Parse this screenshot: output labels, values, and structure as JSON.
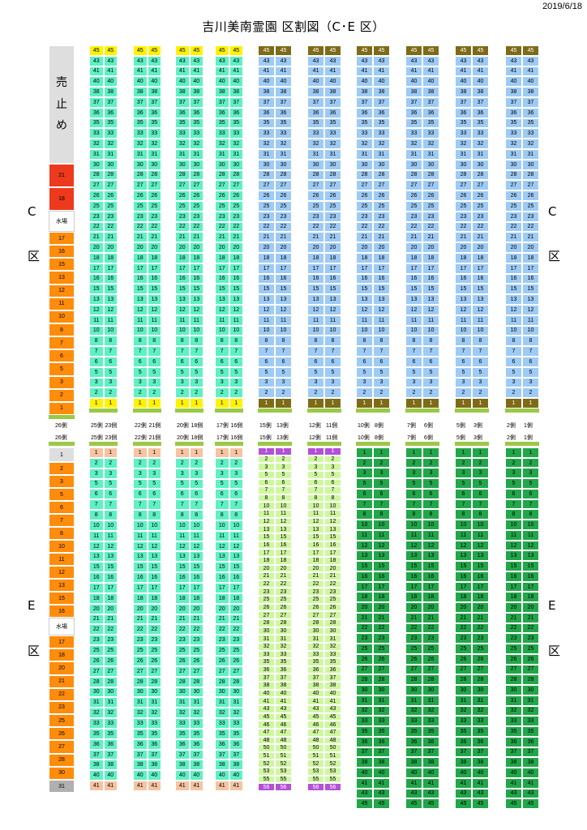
{
  "title": "吉川美南霊園 区割図（C･E 区）",
  "date": "2019/6/18",
  "sections": {
    "c": [
      "C",
      "区"
    ],
    "e": [
      "E",
      "区"
    ]
  },
  "colors": {
    "cyan": "#5ef1c3",
    "blue": "#9ecbf5",
    "yellow": "#fff200",
    "olive": "#7e6b17",
    "peach": "#f7c3a2",
    "purple": "#b44fd8",
    "lightgreen": "#cff7a0",
    "green": "#22a64a",
    "orange": "#ff8c0a",
    "red": "#ee3a1c",
    "gray": "#dedede",
    "sidegreen": "#9ac945"
  },
  "c_side": {
    "top": "売\n止\nめ",
    "red": [
      "21",
      "18"
    ],
    "water": "水場",
    "orange": [
      "17",
      "16",
      "15",
      "13",
      "12",
      "11",
      "10",
      "8",
      "7",
      "6",
      "5",
      "3",
      "2",
      "1"
    ]
  },
  "e_side": {
    "top": "1",
    "orange": [
      "2",
      "3",
      "5",
      "6",
      "7",
      "8",
      "10",
      "11",
      "12",
      "13",
      "15",
      "16"
    ],
    "water": "水場",
    "orange2": [
      "17",
      "18",
      "20",
      "21",
      "22",
      "23",
      "25",
      "26",
      "27",
      "28",
      "30"
    ],
    "bottom": "31"
  },
  "c_rows": [
    "45",
    "43",
    "41",
    "40",
    "38",
    "37",
    "36",
    "35",
    "33",
    "32",
    "31",
    "30",
    "28",
    "27",
    "26",
    "25",
    "23",
    "22",
    "21",
    "20",
    "18",
    "17",
    "16",
    "15",
    "13",
    "12",
    "11",
    "10",
    "8",
    "7",
    "6",
    "5",
    "3",
    "2",
    "1"
  ],
  "e_rows_std": [
    "1",
    "2",
    "3",
    "5",
    "6",
    "7",
    "8",
    "10",
    "11",
    "12",
    "13",
    "15",
    "16",
    "17",
    "18",
    "20",
    "21",
    "22",
    "23",
    "25",
    "26",
    "27",
    "28",
    "30",
    "31",
    "32",
    "33",
    "35",
    "36",
    "37",
    "38",
    "40",
    "41"
  ],
  "e_rows_p": [
    "1",
    "2",
    "3",
    "5",
    "6",
    "7",
    "8",
    "10",
    "11",
    "12",
    "13",
    "15",
    "16",
    "17",
    "18",
    "20",
    "21",
    "22",
    "23",
    "25",
    "26",
    "27",
    "28",
    "30",
    "31",
    "32",
    "33",
    "35",
    "36",
    "37",
    "38",
    "40",
    "41",
    "43",
    "45",
    "46",
    "47",
    "48",
    "50",
    "51",
    "52",
    "53",
    "55",
    "56"
  ],
  "e_rows_g": [
    "1",
    "2",
    "3",
    "5",
    "6",
    "7",
    "8",
    "10",
    "11",
    "12",
    "13",
    "15",
    "16",
    "17",
    "18",
    "20",
    "21",
    "22",
    "23",
    "25",
    "26",
    "27",
    "28",
    "30",
    "31",
    "32",
    "33",
    "35",
    "36",
    "37",
    "38",
    "40",
    "41",
    "43",
    "45"
  ],
  "col_labels": [
    [
      "25側",
      "23側"
    ],
    [
      "22側",
      "21側"
    ],
    [
      "20側",
      "18側"
    ],
    [
      "17側",
      "16側"
    ],
    [
      "15側",
      "13側"
    ],
    [
      "12側",
      "11側"
    ],
    [
      "10側",
      "8側"
    ],
    [
      "7側",
      "6側"
    ],
    [
      "5側",
      "3側"
    ],
    [
      "2側",
      "1側"
    ]
  ],
  "side_label": "26側"
}
